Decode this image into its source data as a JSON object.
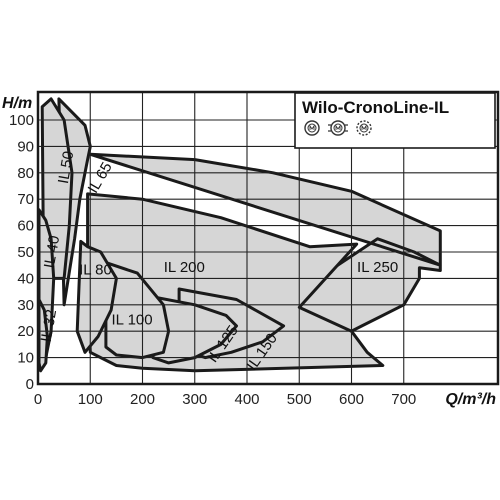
{
  "chart_data": {
    "type": "area",
    "title": "Wilo-CronoLine-IL",
    "xlabel": "Q/m³/h",
    "ylabel": "H/m",
    "xlim": [
      0,
      770
    ],
    "ylim": [
      0,
      100
    ],
    "xticks": [
      0,
      100,
      200,
      300,
      400,
      500,
      600,
      700
    ],
    "yticks": [
      0,
      10,
      20,
      30,
      40,
      50,
      60,
      70,
      80,
      90,
      100
    ],
    "grid": true,
    "colors": {
      "region_fill": "#d6d6d6",
      "region_stroke": "#1a1a1a",
      "grid": "#222222"
    },
    "legend_icons": [
      "motor-single-icon",
      "motor-double-icon",
      "motor-dashed-icon"
    ],
    "series": [
      {
        "name": "IL 250",
        "label_at": [
          650,
          44
        ],
        "rotation": 0,
        "outline": [
          [
            100,
            87
          ],
          [
            300,
            85
          ],
          [
            450,
            80
          ],
          [
            600,
            73
          ],
          [
            770,
            58
          ],
          [
            770,
            43
          ],
          [
            730,
            44
          ],
          [
            730,
            40
          ],
          [
            700,
            30
          ],
          [
            620,
            22
          ],
          [
            560,
            16
          ],
          [
            500,
            29
          ],
          [
            520,
            38
          ],
          [
            650,
            55
          ],
          [
            720,
            50
          ],
          [
            770,
            45
          ]
        ]
      },
      {
        "name": "IL 200",
        "label_at": [
          280,
          44
        ],
        "rotation": 0,
        "outline": [
          [
            95,
            72
          ],
          [
            200,
            70
          ],
          [
            350,
            63
          ],
          [
            520,
            52
          ],
          [
            610,
            53
          ],
          [
            500,
            29
          ],
          [
            600,
            20
          ],
          [
            630,
            12
          ],
          [
            660,
            7
          ],
          [
            300,
            5
          ],
          [
            200,
            6
          ],
          [
            150,
            7
          ],
          [
            120,
            10
          ],
          [
            100,
            12
          ],
          [
            95,
            40
          ],
          [
            95,
            72
          ]
        ]
      },
      {
        "name": "IL 150",
        "label_at": [
          430,
          12
        ],
        "rotation": -55,
        "outline": [
          [
            270,
            36
          ],
          [
            380,
            32
          ],
          [
            470,
            22
          ],
          [
            430,
            16
          ],
          [
            370,
            12
          ],
          [
            320,
            10
          ],
          [
            290,
            12
          ],
          [
            270,
            20
          ],
          [
            270,
            36
          ]
        ]
      },
      {
        "name": "IL 125",
        "label_at": [
          355,
          15
        ],
        "rotation": -55,
        "outline": [
          [
            220,
            33
          ],
          [
            300,
            30
          ],
          [
            360,
            26
          ],
          [
            380,
            22
          ],
          [
            350,
            15
          ],
          [
            300,
            10
          ],
          [
            250,
            8
          ],
          [
            220,
            10
          ],
          [
            220,
            33
          ]
        ]
      },
      {
        "name": "IL 100",
        "label_at": [
          180,
          24
        ],
        "rotation": 0,
        "outline": [
          [
            130,
            46
          ],
          [
            190,
            42
          ],
          [
            240,
            30
          ],
          [
            250,
            20
          ],
          [
            240,
            12
          ],
          [
            200,
            10
          ],
          [
            150,
            11
          ],
          [
            130,
            14
          ],
          [
            130,
            46
          ]
        ]
      },
      {
        "name": "IL 80",
        "label_at": [
          110,
          43
        ],
        "rotation": 0,
        "outline": [
          [
            82,
            54
          ],
          [
            95,
            52
          ],
          [
            120,
            50
          ],
          [
            150,
            40
          ],
          [
            140,
            28
          ],
          [
            115,
            18
          ],
          [
            90,
            12
          ],
          [
            75,
            20
          ],
          [
            82,
            54
          ]
        ]
      },
      {
        "name": "IL 65",
        "label_at": [
          120,
          78
        ],
        "rotation": -60,
        "outline": [
          [
            40,
            108
          ],
          [
            90,
            98
          ],
          [
            100,
            90
          ],
          [
            95,
            85
          ],
          [
            80,
            70
          ],
          [
            70,
            55
          ],
          [
            50,
            30
          ],
          [
            40,
            108
          ]
        ]
      },
      {
        "name": "IL 50",
        "label_at": [
          55,
          82
        ],
        "rotation": -80,
        "outline": [
          [
            8,
            105
          ],
          [
            25,
            108
          ],
          [
            50,
            100
          ],
          [
            65,
            80
          ],
          [
            60,
            60
          ],
          [
            50,
            40
          ],
          [
            30,
            40
          ],
          [
            10,
            60
          ],
          [
            8,
            105
          ]
        ]
      },
      {
        "name": "IL 40",
        "label_at": [
          28,
          50
        ],
        "rotation": -80,
        "outline": [
          [
            2,
            66
          ],
          [
            15,
            62
          ],
          [
            25,
            55
          ],
          [
            30,
            40
          ],
          [
            25,
            20
          ],
          [
            15,
            10
          ],
          [
            2,
            15
          ],
          [
            2,
            66
          ]
        ]
      },
      {
        "name": "IL 32",
        "label_at": [
          22,
          22
        ],
        "rotation": -80,
        "outline": [
          [
            2,
            32
          ],
          [
            12,
            28
          ],
          [
            18,
            18
          ],
          [
            15,
            8
          ],
          [
            5,
            5
          ],
          [
            2,
            8
          ],
          [
            2,
            32
          ]
        ]
      }
    ]
  }
}
